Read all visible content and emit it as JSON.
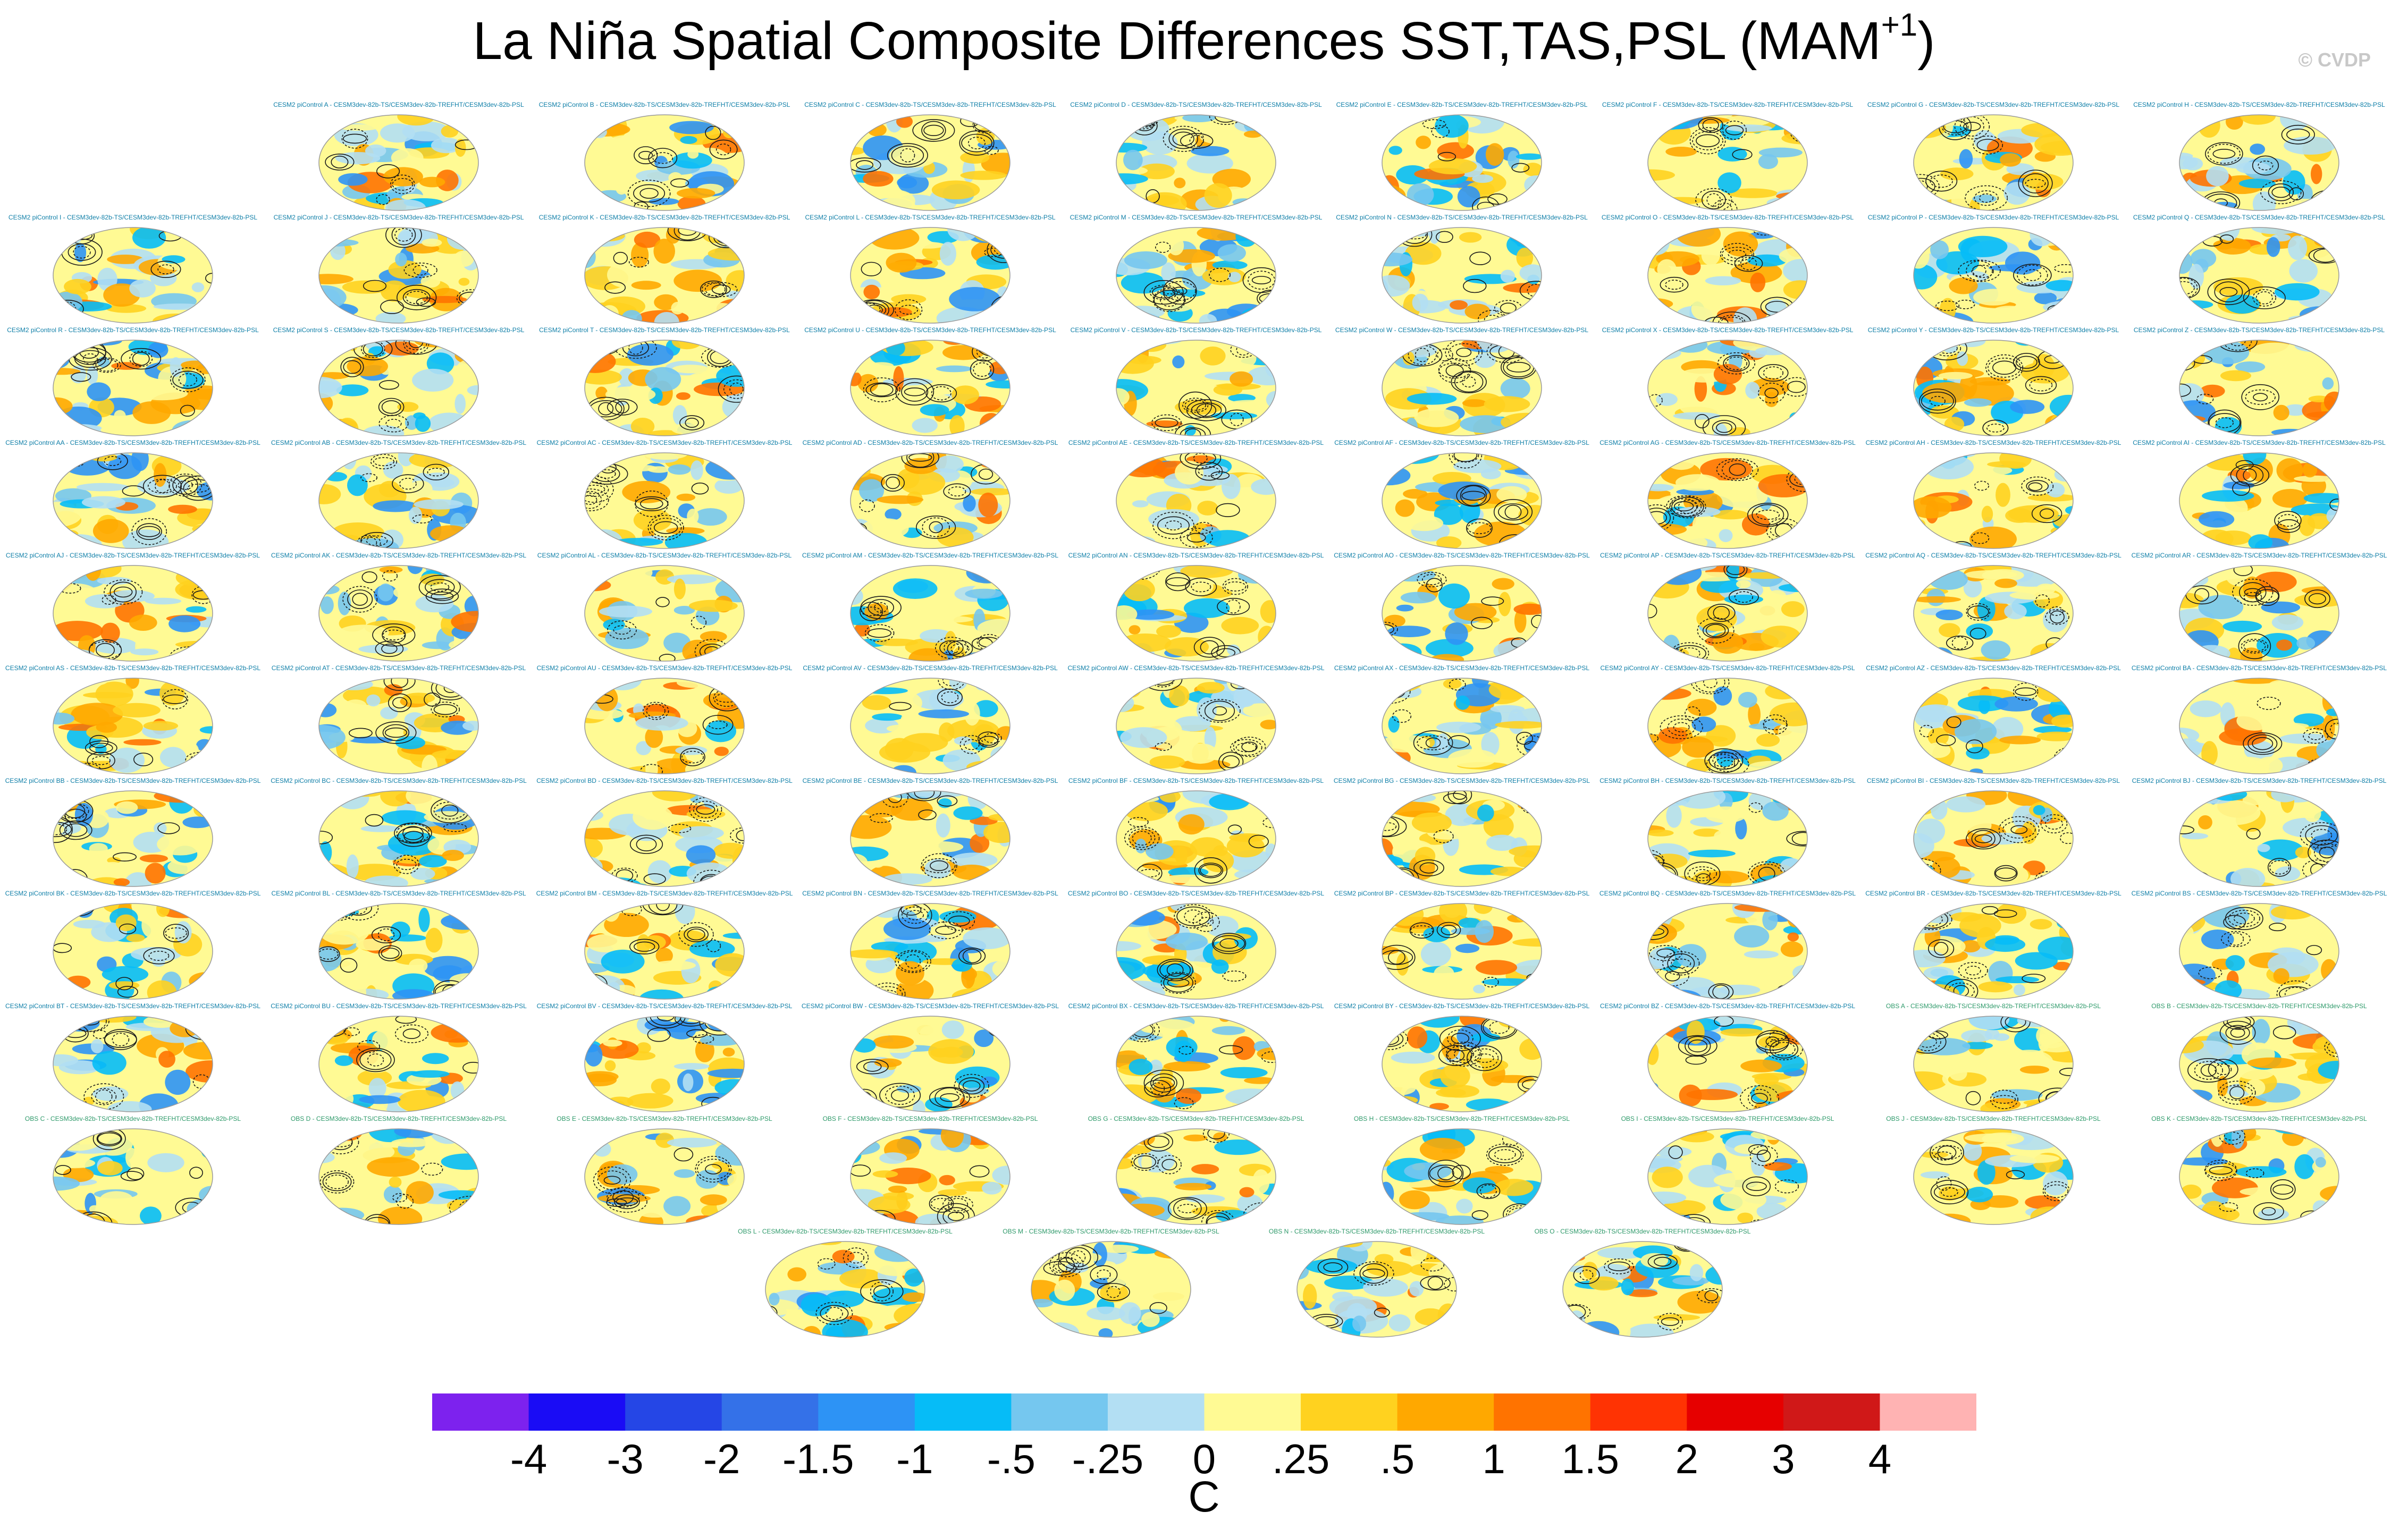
{
  "title_main": "La Niña Spatial Composite Differences SST,TAS,PSL (MAM",
  "title_sup": "+1",
  "title_close": ")",
  "watermark": "© CVDP",
  "colorbar": {
    "units": "C",
    "levels": [
      "-4",
      "-3",
      "-2",
      "-1.5",
      "-1",
      "-.5",
      "-.25",
      "0",
      ".25",
      ".5",
      "1",
      "1.5",
      "2",
      "3",
      "4"
    ],
    "colors": [
      "#7d22ee",
      "#1a0cf5",
      "#2546e6",
      "#3471e8",
      "#2d93f5",
      "#06bcf7",
      "#75c7ef",
      "#b3dff3",
      "#fffa94",
      "#ffd21f",
      "#ffa800",
      "#ff7300",
      "#ff3303",
      "#e60000",
      "#d01818",
      "#ffb3b3"
    ]
  },
  "chart_data": {
    "type": "heatmap",
    "title": "La Niña Spatial Composite Differences SST,TAS,PSL (MAM+1)",
    "variables": [
      "SST",
      "TAS",
      "PSL"
    ],
    "season": "MAM+1",
    "units": "C",
    "contour_levels": [
      -4,
      -3,
      -2,
      -1.5,
      -1,
      -0.5,
      -0.25,
      0,
      0.25,
      0.5,
      1,
      1.5,
      2,
      3,
      4
    ],
    "panels": [
      "CESM2 piControl A - CESM3dev-82b-TS/CESM3dev-82b-TREFHT/CESM3dev-82b-PSL",
      "CESM2 piControl B - CESM3dev-82b-TS/CESM3dev-82b-TREFHT/CESM3dev-82b-PSL",
      "CESM2 piControl C - CESM3dev-82b-TS/CESM3dev-82b-TREFHT/CESM3dev-82b-PSL",
      "CESM2 piControl D - CESM3dev-82b-TS/CESM3dev-82b-TREFHT/CESM3dev-82b-PSL",
      "CESM2 piControl E - CESM3dev-82b-TS/CESM3dev-82b-TREFHT/CESM3dev-82b-PSL",
      "CESM2 piControl F - CESM3dev-82b-TS/CESM3dev-82b-TREFHT/CESM3dev-82b-PSL",
      "CESM2 piControl G - CESM3dev-82b-TS/CESM3dev-82b-TREFHT/CESM3dev-82b-PSL",
      "CESM2 piControl H - CESM3dev-82b-TS/CESM3dev-82b-TREFHT/CESM3dev-82b-PSL",
      "CESM2 piControl I - CESM3dev-82b-TS/CESM3dev-82b-TREFHT/CESM3dev-82b-PSL",
      "CESM2 piControl J - CESM3dev-82b-TS/CESM3dev-82b-TREFHT/CESM3dev-82b-PSL",
      "CESM2 piControl K - CESM3dev-82b-TS/CESM3dev-82b-TREFHT/CESM3dev-82b-PSL",
      "CESM2 piControl L - CESM3dev-82b-TS/CESM3dev-82b-TREFHT/CESM3dev-82b-PSL",
      "CESM2 piControl M - CESM3dev-82b-TS/CESM3dev-82b-TREFHT/CESM3dev-82b-PSL",
      "CESM2 piControl N - CESM3dev-82b-TS/CESM3dev-82b-TREFHT/CESM3dev-82b-PSL",
      "CESM2 piControl O - CESM3dev-82b-TS/CESM3dev-82b-TREFHT/CESM3dev-82b-PSL",
      "CESM2 piControl P - CESM3dev-82b-TS/CESM3dev-82b-TREFHT/CESM3dev-82b-PSL",
      "CESM2 piControl Q - CESM3dev-82b-TS/CESM3dev-82b-TREFHT/CESM3dev-82b-PSL",
      "CESM2 piControl R - CESM3dev-82b-TS/CESM3dev-82b-TREFHT/CESM3dev-82b-PSL",
      "CESM2 piControl S - CESM3dev-82b-TS/CESM3dev-82b-TREFHT/CESM3dev-82b-PSL",
      "CESM2 piControl T - CESM3dev-82b-TS/CESM3dev-82b-TREFHT/CESM3dev-82b-PSL",
      "CESM2 piControl U - CESM3dev-82b-TS/CESM3dev-82b-TREFHT/CESM3dev-82b-PSL",
      "CESM2 piControl V - CESM3dev-82b-TS/CESM3dev-82b-TREFHT/CESM3dev-82b-PSL",
      "CESM2 piControl W - CESM3dev-82b-TS/CESM3dev-82b-TREFHT/CESM3dev-82b-PSL",
      "CESM2 piControl X - CESM3dev-82b-TS/CESM3dev-82b-TREFHT/CESM3dev-82b-PSL",
      "CESM2 piControl Y - CESM3dev-82b-TS/CESM3dev-82b-TREFHT/CESM3dev-82b-PSL",
      "CESM2 piControl Z - CESM3dev-82b-TS/CESM3dev-82b-TREFHT/CESM3dev-82b-PSL",
      "CESM2 piControl AA - CESM3dev-82b-TS/CESM3dev-82b-TREFHT/CESM3dev-82b-PSL",
      "CESM2 piControl AB - CESM3dev-82b-TS/CESM3dev-82b-TREFHT/CESM3dev-82b-PSL",
      "CESM2 piControl AC - CESM3dev-82b-TS/CESM3dev-82b-TREFHT/CESM3dev-82b-PSL",
      "CESM2 piControl AD - CESM3dev-82b-TS/CESM3dev-82b-TREFHT/CESM3dev-82b-PSL",
      "CESM2 piControl AE - CESM3dev-82b-TS/CESM3dev-82b-TREFHT/CESM3dev-82b-PSL",
      "CESM2 piControl AF - CESM3dev-82b-TS/CESM3dev-82b-TREFHT/CESM3dev-82b-PSL",
      "CESM2 piControl AG - CESM3dev-82b-TS/CESM3dev-82b-TREFHT/CESM3dev-82b-PSL",
      "CESM2 piControl AH - CESM3dev-82b-TS/CESM3dev-82b-TREFHT/CESM3dev-82b-PSL",
      "CESM2 piControl AI - CESM3dev-82b-TS/CESM3dev-82b-TREFHT/CESM3dev-82b-PSL",
      "CESM2 piControl AJ - CESM3dev-82b-TS/CESM3dev-82b-TREFHT/CESM3dev-82b-PSL",
      "CESM2 piControl AK - CESM3dev-82b-TS/CESM3dev-82b-TREFHT/CESM3dev-82b-PSL",
      "CESM2 piControl AL - CESM3dev-82b-TS/CESM3dev-82b-TREFHT/CESM3dev-82b-PSL",
      "CESM2 piControl AM - CESM3dev-82b-TS/CESM3dev-82b-TREFHT/CESM3dev-82b-PSL",
      "CESM2 piControl AN - CESM3dev-82b-TS/CESM3dev-82b-TREFHT/CESM3dev-82b-PSL",
      "CESM2 piControl AO - CESM3dev-82b-TS/CESM3dev-82b-TREFHT/CESM3dev-82b-PSL",
      "CESM2 piControl AP - CESM3dev-82b-TS/CESM3dev-82b-TREFHT/CESM3dev-82b-PSL",
      "CESM2 piControl AQ - CESM3dev-82b-TS/CESM3dev-82b-TREFHT/CESM3dev-82b-PSL",
      "CESM2 piControl AR - CESM3dev-82b-TS/CESM3dev-82b-TREFHT/CESM3dev-82b-PSL",
      "CESM2 piControl AS - CESM3dev-82b-TS/CESM3dev-82b-TREFHT/CESM3dev-82b-PSL",
      "CESM2 piControl AT - CESM3dev-82b-TS/CESM3dev-82b-TREFHT/CESM3dev-82b-PSL",
      "CESM2 piControl AU - CESM3dev-82b-TS/CESM3dev-82b-TREFHT/CESM3dev-82b-PSL",
      "CESM2 piControl AV - CESM3dev-82b-TS/CESM3dev-82b-TREFHT/CESM3dev-82b-PSL",
      "CESM2 piControl AW - CESM3dev-82b-TS/CESM3dev-82b-TREFHT/CESM3dev-82b-PSL",
      "CESM2 piControl AX - CESM3dev-82b-TS/CESM3dev-82b-TREFHT/CESM3dev-82b-PSL",
      "CESM2 piControl AY - CESM3dev-82b-TS/CESM3dev-82b-TREFHT/CESM3dev-82b-PSL",
      "CESM2 piControl AZ - CESM3dev-82b-TS/CESM3dev-82b-TREFHT/CESM3dev-82b-PSL",
      "CESM2 piControl BA - CESM3dev-82b-TS/CESM3dev-82b-TREFHT/CESM3dev-82b-PSL",
      "CESM2 piControl BB - CESM3dev-82b-TS/CESM3dev-82b-TREFHT/CESM3dev-82b-PSL",
      "CESM2 piControl BC - CESM3dev-82b-TS/CESM3dev-82b-TREFHT/CESM3dev-82b-PSL",
      "CESM2 piControl BD - CESM3dev-82b-TS/CESM3dev-82b-TREFHT/CESM3dev-82b-PSL",
      "CESM2 piControl BE - CESM3dev-82b-TS/CESM3dev-82b-TREFHT/CESM3dev-82b-PSL",
      "CESM2 piControl BF - CESM3dev-82b-TS/CESM3dev-82b-TREFHT/CESM3dev-82b-PSL",
      "CESM2 piControl BG - CESM3dev-82b-TS/CESM3dev-82b-TREFHT/CESM3dev-82b-PSL",
      "CESM2 piControl BH - CESM3dev-82b-TS/CESM3dev-82b-TREFHT/CESM3dev-82b-PSL",
      "CESM2 piControl BI - CESM3dev-82b-TS/CESM3dev-82b-TREFHT/CESM3dev-82b-PSL",
      "CESM2 piControl BJ - CESM3dev-82b-TS/CESM3dev-82b-TREFHT/CESM3dev-82b-PSL",
      "CESM2 piControl BK - CESM3dev-82b-TS/CESM3dev-82b-TREFHT/CESM3dev-82b-PSL",
      "CESM2 piControl BL - CESM3dev-82b-TS/CESM3dev-82b-TREFHT/CESM3dev-82b-PSL",
      "CESM2 piControl BM - CESM3dev-82b-TS/CESM3dev-82b-TREFHT/CESM3dev-82b-PSL",
      "CESM2 piControl BN - CESM3dev-82b-TS/CESM3dev-82b-TREFHT/CESM3dev-82b-PSL",
      "CESM2 piControl BO - CESM3dev-82b-TS/CESM3dev-82b-TREFHT/CESM3dev-82b-PSL",
      "CESM2 piControl BP - CESM3dev-82b-TS/CESM3dev-82b-TREFHT/CESM3dev-82b-PSL",
      "CESM2 piControl BQ - CESM3dev-82b-TS/CESM3dev-82b-TREFHT/CESM3dev-82b-PSL",
      "CESM2 piControl BR - CESM3dev-82b-TS/CESM3dev-82b-TREFHT/CESM3dev-82b-PSL",
      "CESM2 piControl BS - CESM3dev-82b-TS/CESM3dev-82b-TREFHT/CESM3dev-82b-PSL",
      "CESM2 piControl BT - CESM3dev-82b-TS/CESM3dev-82b-TREFHT/CESM3dev-82b-PSL",
      "CESM2 piControl BU - CESM3dev-82b-TS/CESM3dev-82b-TREFHT/CESM3dev-82b-PSL",
      "CESM2 piControl BV - CESM3dev-82b-TS/CESM3dev-82b-TREFHT/CESM3dev-82b-PSL",
      "CESM2 piControl BW - CESM3dev-82b-TS/CESM3dev-82b-TREFHT/CESM3dev-82b-PSL",
      "CESM2 piControl BX - CESM3dev-82b-TS/CESM3dev-82b-TREFHT/CESM3dev-82b-PSL",
      "CESM2 piControl BY - CESM3dev-82b-TS/CESM3dev-82b-TREFHT/CESM3dev-82b-PSL",
      "CESM2 piControl BZ - CESM3dev-82b-TS/CESM3dev-82b-TREFHT/CESM3dev-82b-PSL",
      "OBS A - CESM3dev-82b-TS/CESM3dev-82b-TREFHT/CESM3dev-82b-PSL",
      "OBS B - CESM3dev-82b-TS/CESM3dev-82b-TREFHT/CESM3dev-82b-PSL",
      "OBS C - CESM3dev-82b-TS/CESM3dev-82b-TREFHT/CESM3dev-82b-PSL",
      "OBS D - CESM3dev-82b-TS/CESM3dev-82b-TREFHT/CESM3dev-82b-PSL",
      "OBS E - CESM3dev-82b-TS/CESM3dev-82b-TREFHT/CESM3dev-82b-PSL",
      "OBS F - CESM3dev-82b-TS/CESM3dev-82b-TREFHT/CESM3dev-82b-PSL",
      "OBS G - CESM3dev-82b-TS/CESM3dev-82b-TREFHT/CESM3dev-82b-PSL",
      "OBS H - CESM3dev-82b-TS/CESM3dev-82b-TREFHT/CESM3dev-82b-PSL",
      "OBS I - CESM3dev-82b-TS/CESM3dev-82b-TREFHT/CESM3dev-82b-PSL",
      "OBS J - CESM3dev-82b-TS/CESM3dev-82b-TREFHT/CESM3dev-82b-PSL",
      "OBS K - CESM3dev-82b-TS/CESM3dev-82b-TREFHT/CESM3dev-82b-PSL",
      "OBS L - CESM3dev-82b-TS/CESM3dev-82b-TREFHT/CESM3dev-82b-PSL",
      "OBS M - CESM3dev-82b-TS/CESM3dev-82b-TREFHT/CESM3dev-82b-PSL",
      "OBS N - CESM3dev-82b-TS/CESM3dev-82b-TREFHT/CESM3dev-82b-PSL",
      "OBS O - CESM3dev-82b-TS/CESM3dev-82b-TREFHT/CESM3dev-82b-PSL"
    ]
  }
}
